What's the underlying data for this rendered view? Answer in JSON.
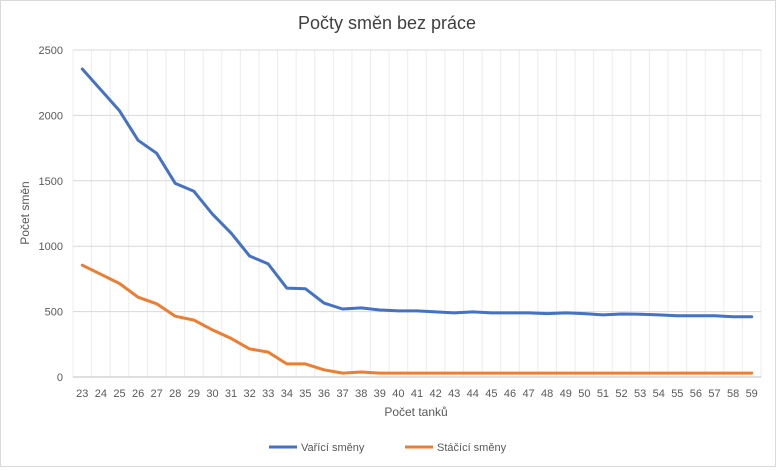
{
  "chart_data": {
    "type": "line",
    "title": "Počty směn bez práce",
    "xlabel": "Počet tanků",
    "ylabel": "Počet směn",
    "ylim": [
      0,
      2500
    ],
    "yticks": [
      "0",
      "500",
      "1000",
      "1500",
      "2000",
      "2500"
    ],
    "categories": [
      "23",
      "24",
      "25",
      "26",
      "27",
      "28",
      "29",
      "30",
      "31",
      "32",
      "33",
      "34",
      "35",
      "36",
      "37",
      "38",
      "39",
      "40",
      "41",
      "42",
      "43",
      "44",
      "45",
      "46",
      "47",
      "48",
      "49",
      "50",
      "51",
      "52",
      "53",
      "54",
      "55",
      "56",
      "57",
      "58",
      "59"
    ],
    "grid": true,
    "legend_position": "bottom",
    "series": [
      {
        "name": "Vařící směny",
        "color": "#4472c4",
        "values": [
          2355,
          2195,
          2035,
          1810,
          1710,
          1480,
          1420,
          1245,
          1100,
          925,
          865,
          680,
          675,
          565,
          520,
          528,
          512,
          505,
          505,
          498,
          490,
          498,
          490,
          490,
          490,
          485,
          490,
          485,
          475,
          482,
          480,
          475,
          468,
          468,
          468,
          460,
          460
        ]
      },
      {
        "name": "Stáčící směny",
        "color": "#ed7d31",
        "values": [
          855,
          785,
          715,
          610,
          560,
          465,
          435,
          360,
          295,
          215,
          190,
          100,
          100,
          55,
          30,
          38,
          30,
          30,
          30,
          30,
          30,
          30,
          30,
          30,
          30,
          30,
          30,
          30,
          30,
          30,
          30,
          30,
          30,
          30,
          30,
          30,
          30
        ]
      }
    ]
  }
}
